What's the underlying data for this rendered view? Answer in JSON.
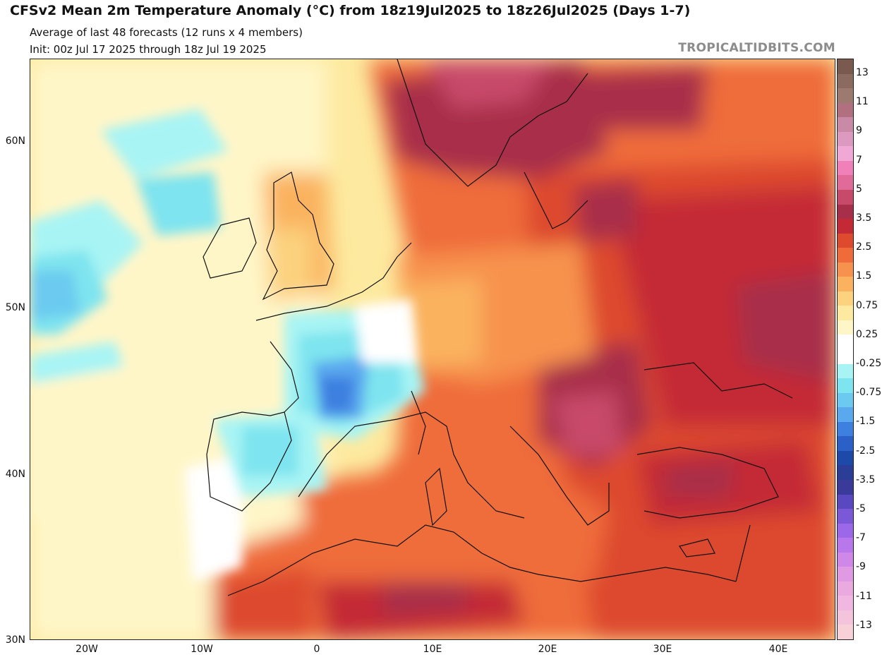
{
  "header": {
    "title": "CFSv2 Mean 2m Temperature Anomaly (°C) from 18z19Jul2025 to 18z26Jul2025 (Days 1-7)",
    "subtitle": "Average of last 48 forecasts (12 runs x 4 members)",
    "init": "Init: 00z Jul 17 2025 through 18z Jul 19 2025",
    "brand": "TROPICALTIDBITS.COM"
  },
  "axes": {
    "lat_labels": [
      "60N",
      "50N",
      "40N",
      "30N"
    ],
    "lon_labels": [
      "20W",
      "10W",
      "0",
      "10E",
      "20E",
      "30E",
      "40E"
    ]
  },
  "colorbar": {
    "labels": [
      "13",
      "11",
      "9",
      "7",
      "5",
      "3.5",
      "2.5",
      "1.5",
      "0.75",
      "0.25",
      "-0.25",
      "-0.75",
      "-1.5",
      "-2.5",
      "-3.5",
      "-5",
      "-7",
      "-9",
      "-11",
      "-13"
    ],
    "colors": [
      "#7a5a4f",
      "#8b6a60",
      "#9c7a70",
      "#b07080",
      "#c88aa6",
      "#dc9ac0",
      "#f0a8d4",
      "#f080b8",
      "#e06a98",
      "#c84a6a",
      "#a82f4a",
      "#c42a36",
      "#dd4a2e",
      "#ef6c3a",
      "#f7924e",
      "#fab25e",
      "#fcd27e",
      "#fdeaa0",
      "#fff6c8",
      "#ffffff",
      "#ffffff",
      "#a8f4f4",
      "#7ee4ef",
      "#6ccaf0",
      "#5aa8ee",
      "#3e80e0",
      "#2a60c8",
      "#1d4aa8",
      "#2a3e98",
      "#3a3a9a",
      "#5a48c0",
      "#7a58d8",
      "#9a68e8",
      "#b878ec",
      "#d088e8",
      "#e09ae2",
      "#eaaae0",
      "#f0b8e0",
      "#f4c4dc",
      "#f8d0d8"
    ]
  }
}
